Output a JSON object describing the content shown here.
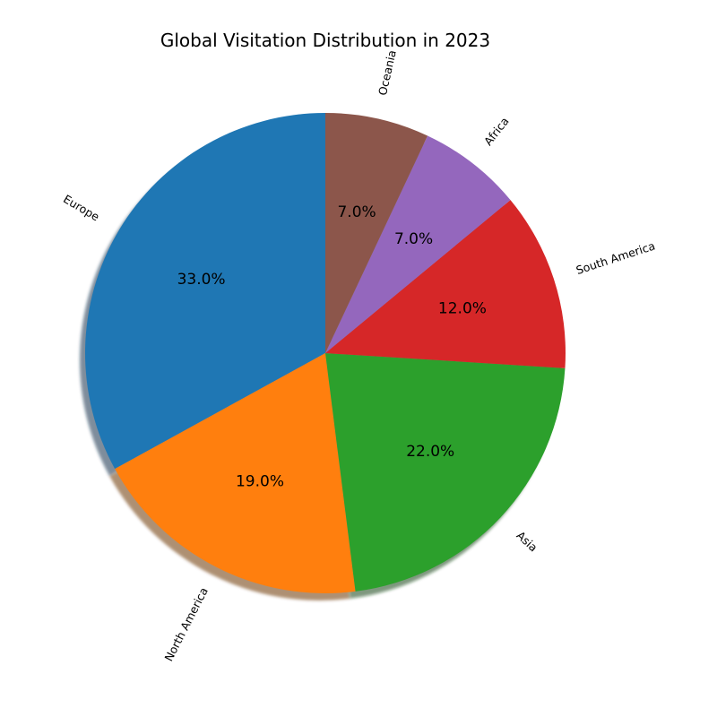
{
  "chart_data": {
    "type": "pie",
    "title": "Global Visitation Distribution in 2023",
    "start_angle_deg": 90,
    "direction": "counterclockwise",
    "shadow": true,
    "label_rotation": "radial",
    "slices": [
      {
        "label": "Europe",
        "value": 33.0,
        "pct_label": "33.0%",
        "color": "#1f77b4"
      },
      {
        "label": "North America",
        "value": 19.0,
        "pct_label": "19.0%",
        "color": "#ff7f0e"
      },
      {
        "label": "Asia",
        "value": 22.0,
        "pct_label": "22.0%",
        "color": "#2ca02c"
      },
      {
        "label": "South America",
        "value": 12.0,
        "pct_label": "12.0%",
        "color": "#d62728"
      },
      {
        "label": "Africa",
        "value": 7.0,
        "pct_label": "7.0%",
        "color": "#9467bd"
      },
      {
        "label": "Oceania",
        "value": 7.0,
        "pct_label": "7.0%",
        "color": "#8c564b"
      }
    ]
  }
}
